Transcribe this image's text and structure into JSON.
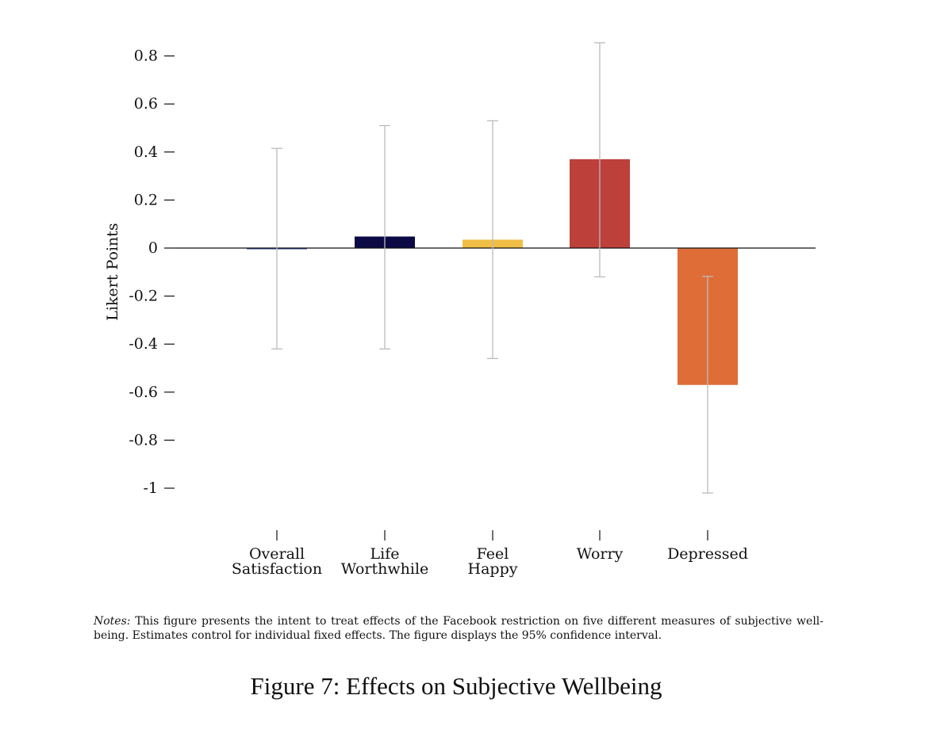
{
  "chart_data": {
    "type": "bar",
    "ylabel": "Likert Points",
    "ylim": [
      -1.15,
      0.9
    ],
    "yticks": [
      0.8,
      0.6,
      0.4,
      0.2,
      0,
      -0.2,
      -0.4,
      -0.6,
      -0.8,
      -1
    ],
    "ytick_labels": [
      "0.8",
      "0.6",
      "0.4",
      "0.2",
      "0",
      "-0.2",
      "-0.4",
      "-0.6",
      "-0.8",
      "-1"
    ],
    "categories": [
      [
        "Overall",
        "Satisfaction"
      ],
      [
        "Life",
        "Worthwhile"
      ],
      [
        "Feel",
        "Happy"
      ],
      [
        "Worry"
      ],
      [
        "Depressed"
      ]
    ],
    "values": [
      -0.003,
      0.048,
      0.035,
      0.37,
      -0.57
    ],
    "ci_lower": [
      -0.42,
      -0.42,
      -0.46,
      -0.12,
      -1.02
    ],
    "ci_upper": [
      0.415,
      0.51,
      0.53,
      0.855,
      -0.118
    ],
    "colors": [
      "#2f3f8f",
      "#0c0a45",
      "#f0be46",
      "#bd403a",
      "#df6d38"
    ],
    "errorbar_color": "#bbbbbb",
    "grid": false
  },
  "notes": {
    "label": "Notes:",
    "text": "This figure presents the intent to treat effects of the Facebook restriction on five different measures of subjective well-being. Estimates control for individual fixed effects. The figure displays the 95% confidence interval."
  },
  "caption": "Figure 7: Effects on Subjective Wellbeing"
}
